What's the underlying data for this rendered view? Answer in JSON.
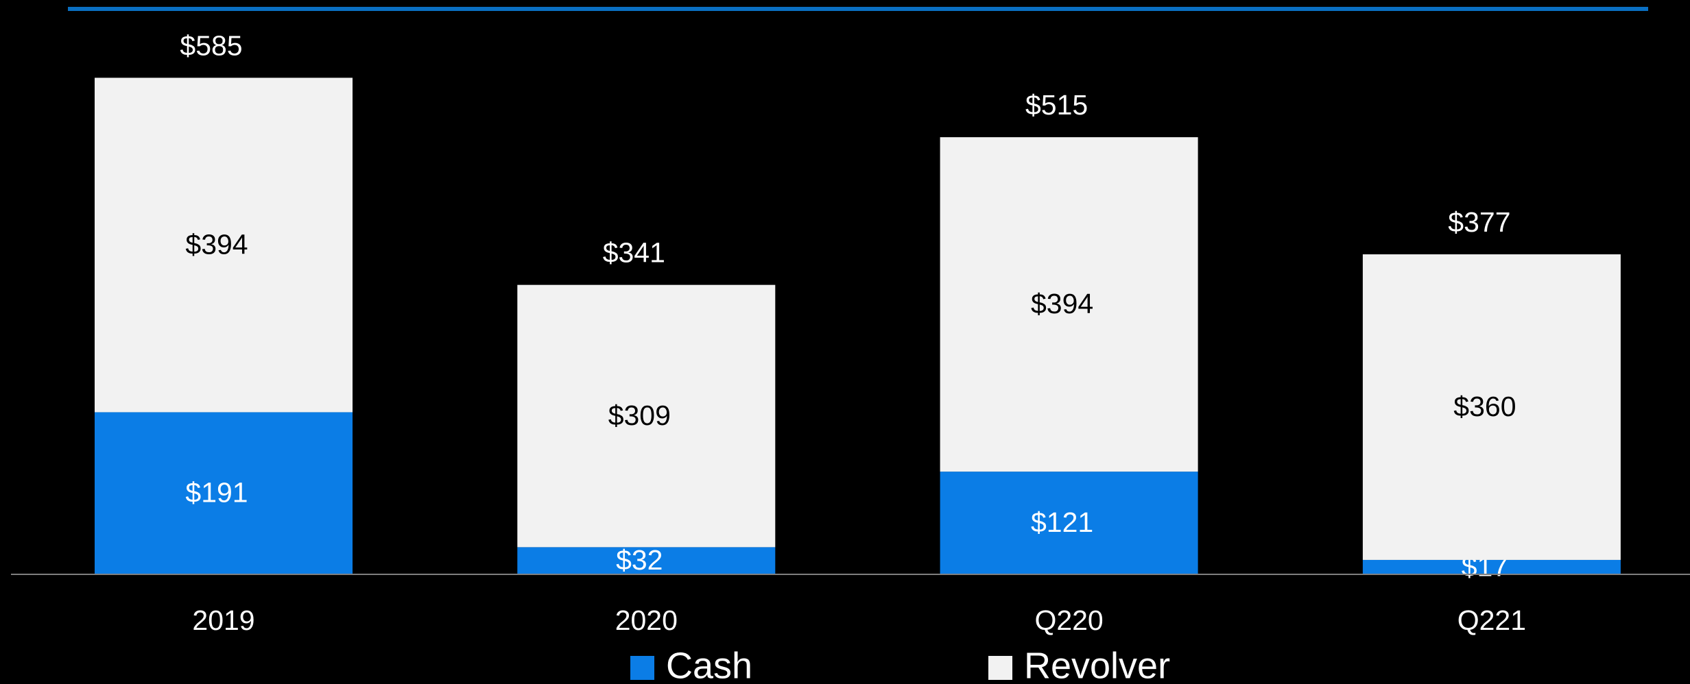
{
  "chart_data": {
    "type": "stacked_bar",
    "categories": [
      "2019",
      "2020",
      "Q220",
      "Q221"
    ],
    "series": [
      {
        "name": "Cash",
        "color": "#0b7de6",
        "values": [
          191,
          32,
          121,
          17
        ],
        "value_labels": [
          "$191",
          "$32",
          "$121",
          "$17"
        ]
      },
      {
        "name": "Revolver",
        "color": "#f2f2f2",
        "values": [
          394,
          309,
          394,
          360
        ],
        "value_labels": [
          "$394",
          "$309",
          "$394",
          "$360"
        ]
      }
    ],
    "totals": [
      585,
      341,
      515,
      377
    ],
    "total_labels": [
      "$585",
      "$341",
      "$515",
      "$377"
    ]
  }
}
